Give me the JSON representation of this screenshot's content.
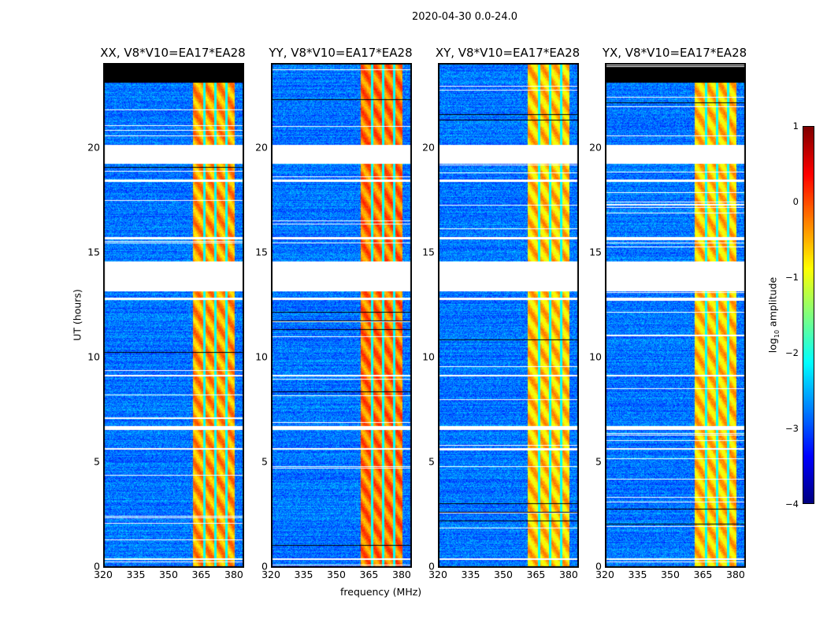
{
  "chart_data": {
    "type": "heatmap",
    "title": "2020-04-30 0.0-24.0",
    "xlabel": "frequency (MHz)",
    "ylabel": "UT (hours)",
    "xlim": [
      320,
      384
    ],
    "ylim": [
      0,
      24
    ],
    "xticks": [
      "320",
      "335",
      "350",
      "365",
      "380"
    ],
    "yticks": [
      "0",
      "5",
      "10",
      "15",
      "20"
    ],
    "panels": [
      {
        "title": "XX, V8*V10=EA17*EA28",
        "black_top": true,
        "rfi_level": -0.4
      },
      {
        "title": "YY, V8*V10=EA17*EA28",
        "black_top": false,
        "rfi_level": -0.2
      },
      {
        "title": "XY, V8*V10=EA17*EA28",
        "black_top": false,
        "rfi_level": -0.6
      },
      {
        "title": "YX, V8*V10=EA17*EA28",
        "black_top": true,
        "rfi_level": -0.6
      }
    ],
    "background_level": -2.8,
    "rfi_band_mhz": [
      360.5,
      380
    ],
    "rfi_gap_lines_mhz": [
      366,
      371,
      376
    ],
    "flagged_ranges_ut": [
      [
        19.25,
        20.15
      ],
      [
        13.15,
        14.6
      ],
      [
        0.35,
        0.45
      ],
      [
        5.6,
        5.7
      ],
      [
        6.55,
        6.75
      ],
      [
        9.1,
        9.2
      ],
      [
        12.75,
        12.85
      ],
      [
        15.65,
        15.75
      ],
      [
        18.4,
        18.5
      ]
    ],
    "colorbar": {
      "label": "log10 amplitude",
      "range": [
        -4,
        1
      ],
      "ticks": [
        "1",
        "0",
        "−1",
        "−2",
        "−3",
        "−4"
      ],
      "colormap": "jet"
    }
  }
}
